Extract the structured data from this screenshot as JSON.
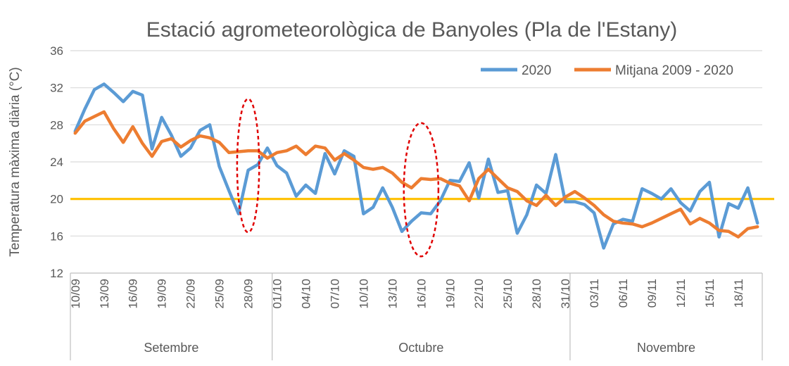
{
  "chart_data": {
    "type": "line",
    "title": "Estació agrometeorològica de Banyoles (Pla de l'Estany)",
    "ylabel": "Temperatura màxima diària (°C)",
    "xlabel": "",
    "ylim": [
      12,
      36
    ],
    "yticks": [
      12,
      16,
      20,
      24,
      28,
      32,
      36
    ],
    "grid": "horizontal",
    "legend_position": "top-right",
    "x": [
      "10/09",
      "11/09",
      "12/09",
      "13/09",
      "14/09",
      "15/09",
      "16/09",
      "17/09",
      "18/09",
      "19/09",
      "20/09",
      "21/09",
      "22/09",
      "23/09",
      "24/09",
      "25/09",
      "26/09",
      "27/09",
      "28/09",
      "29/09",
      "30/09",
      "01/10",
      "02/10",
      "03/10",
      "04/10",
      "05/10",
      "06/10",
      "07/10",
      "08/10",
      "09/10",
      "10/10",
      "11/10",
      "12/10",
      "13/10",
      "14/10",
      "15/10",
      "16/10",
      "17/10",
      "18/10",
      "19/10",
      "20/10",
      "21/10",
      "22/10",
      "23/10",
      "24/10",
      "25/10",
      "26/10",
      "27/10",
      "28/10",
      "29/10",
      "30/10",
      "31/10",
      "01/11",
      "02/11",
      "03/11",
      "04/11",
      "05/11",
      "06/11",
      "07/11",
      "08/11",
      "09/11",
      "10/11",
      "11/11",
      "12/11",
      "13/11",
      "14/11",
      "15/11",
      "16/11",
      "17/11",
      "18/11",
      "19/11",
      "20/11"
    ],
    "tick_labels": [
      "10/09",
      "13/09",
      "16/09",
      "19/09",
      "22/09",
      "25/09",
      "28/09",
      "01/10",
      "04/10",
      "07/10",
      "10/10",
      "13/10",
      "16/10",
      "19/10",
      "22/10",
      "25/10",
      "28/10",
      "31/10",
      "03/11",
      "06/11",
      "09/11",
      "12/11",
      "15/11",
      "18/11"
    ],
    "months": [
      {
        "label": "Setembre",
        "start": 0,
        "end": 21
      },
      {
        "label": "Octubre",
        "start": 21,
        "end": 52
      },
      {
        "label": "Novembre",
        "start": 52,
        "end": 72
      }
    ],
    "reference_line": {
      "y": 20,
      "color": "#FFC000"
    },
    "highlights": [
      {
        "x_center": 18,
        "y_center": 23.6,
        "x_radius": 1.15,
        "y_radius": 7.2
      },
      {
        "x_center": 36,
        "y_center": 21,
        "x_radius": 1.8,
        "y_radius": 7.2
      }
    ],
    "series": [
      {
        "name": "2020",
        "color": "#5B9BD5",
        "values": [
          27.3,
          29.7,
          31.8,
          32.4,
          31.5,
          30.5,
          31.6,
          31.2,
          25.4,
          28.8,
          26.9,
          24.6,
          25.5,
          27.4,
          28.0,
          23.5,
          20.9,
          18.4,
          23.1,
          23.7,
          25.5,
          23.6,
          22.8,
          20.3,
          21.5,
          20.6,
          24.9,
          22.7,
          25.2,
          24.6,
          18.4,
          19.1,
          21.2,
          19.1,
          16.5,
          17.6,
          18.5,
          18.4,
          19.8,
          22.0,
          21.9,
          23.9,
          20.1,
          24.3,
          20.7,
          20.9,
          16.3,
          18.3,
          21.5,
          20.6,
          24.8,
          19.7,
          19.7,
          19.4,
          18.5,
          14.7,
          17.3,
          17.8,
          17.6,
          21.1,
          20.6,
          20.0,
          21.1,
          19.6,
          18.7,
          20.8,
          21.8,
          15.9,
          19.5,
          19.0,
          21.2,
          17.4
        ]
      },
      {
        "name": "Mitjana 2009 - 2020",
        "color": "#ED7D31",
        "values": [
          27.1,
          28.4,
          28.9,
          29.4,
          27.6,
          26.1,
          27.8,
          26.0,
          24.6,
          26.2,
          26.5,
          25.6,
          26.3,
          26.8,
          26.6,
          26.1,
          25.0,
          25.1,
          25.2,
          25.2,
          24.4,
          25.0,
          25.2,
          25.7,
          24.8,
          25.7,
          25.5,
          24.2,
          24.9,
          24.2,
          23.4,
          23.2,
          23.4,
          22.8,
          21.8,
          21.2,
          22.2,
          22.1,
          22.2,
          21.7,
          21.4,
          19.8,
          22.2,
          23.2,
          22.2,
          21.2,
          20.8,
          19.8,
          19.3,
          20.4,
          19.3,
          20.2,
          20.8,
          20.1,
          19.3,
          18.3,
          17.6,
          17.4,
          17.3,
          17.0,
          17.4,
          17.9,
          18.4,
          18.9,
          17.3,
          17.9,
          17.4,
          16.6,
          16.5,
          15.9,
          16.8,
          17.0
        ]
      }
    ]
  }
}
